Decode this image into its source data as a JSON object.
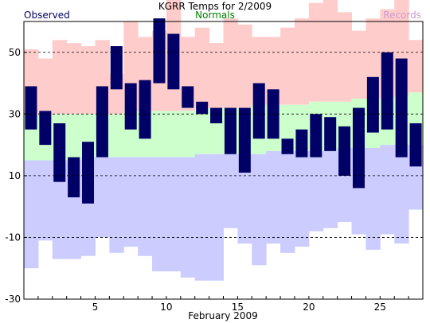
{
  "chart_data": {
    "type": "bar",
    "title": "KGRR Temps for 2/2009",
    "xlabel": "February 2009",
    "ylabel": "",
    "ylim": [
      -30,
      60
    ],
    "yticks": [
      50,
      30,
      10,
      -10,
      -30
    ],
    "xticks": [
      5,
      10,
      15,
      20,
      25
    ],
    "grid": "dashed horizontal at y ticks",
    "legend": {
      "observed": "Observed",
      "normals": "Normals",
      "records": "Records"
    },
    "colors": {
      "observed": "#000066",
      "normals": "#ccffcc",
      "records_high": "#ffcccc",
      "records_low": "#ccccff",
      "normals_label": "#008000",
      "records_label": "#cc99cc",
      "observed_label": "#000066"
    },
    "days": [
      1,
      2,
      3,
      4,
      5,
      6,
      7,
      8,
      9,
      10,
      11,
      12,
      13,
      14,
      15,
      16,
      17,
      18,
      19,
      20,
      21,
      22,
      23,
      24,
      25,
      26,
      27,
      28
    ],
    "observed_high": [
      39,
      31,
      27,
      16,
      21,
      39,
      52,
      40,
      41,
      61,
      56,
      39,
      34,
      32,
      32,
      32,
      40,
      38,
      22,
      25,
      30,
      29,
      26,
      32,
      42,
      50,
      48,
      27
    ],
    "observed_low": [
      25,
      20,
      8,
      3,
      1,
      16,
      38,
      25,
      22,
      40,
      38,
      32,
      30,
      27,
      17,
      11,
      22,
      22,
      17,
      16,
      16,
      18,
      10,
      6,
      24,
      25,
      16,
      13
    ],
    "normal_high": [
      30,
      30,
      30,
      30,
      30,
      30,
      30,
      31,
      31,
      31,
      31,
      31,
      32,
      32,
      32,
      32,
      33,
      33,
      33,
      33,
      34,
      34,
      34,
      35,
      35,
      35,
      36,
      37
    ],
    "normal_low": [
      15,
      15,
      15,
      15,
      16,
      16,
      16,
      16,
      16,
      16,
      16,
      16,
      17,
      17,
      17,
      17,
      17,
      18,
      18,
      18,
      18,
      18,
      19,
      19,
      19,
      20,
      20,
      20
    ],
    "record_high": [
      51,
      48,
      54,
      53,
      52,
      54,
      43,
      60,
      55,
      57,
      69,
      55,
      58,
      53,
      61,
      59,
      55,
      55,
      58,
      61,
      66,
      67,
      63,
      57,
      61,
      64,
      67,
      54
    ],
    "record_low": [
      -20,
      -11,
      -17,
      -17,
      -16,
      -10,
      -15,
      -13,
      -16,
      -21,
      -21,
      -23,
      -24,
      -24,
      -7,
      -12,
      -19,
      -12,
      -15,
      -13,
      -8,
      -7,
      -5,
      -9,
      -14,
      -9,
      -12,
      -1
    ]
  }
}
